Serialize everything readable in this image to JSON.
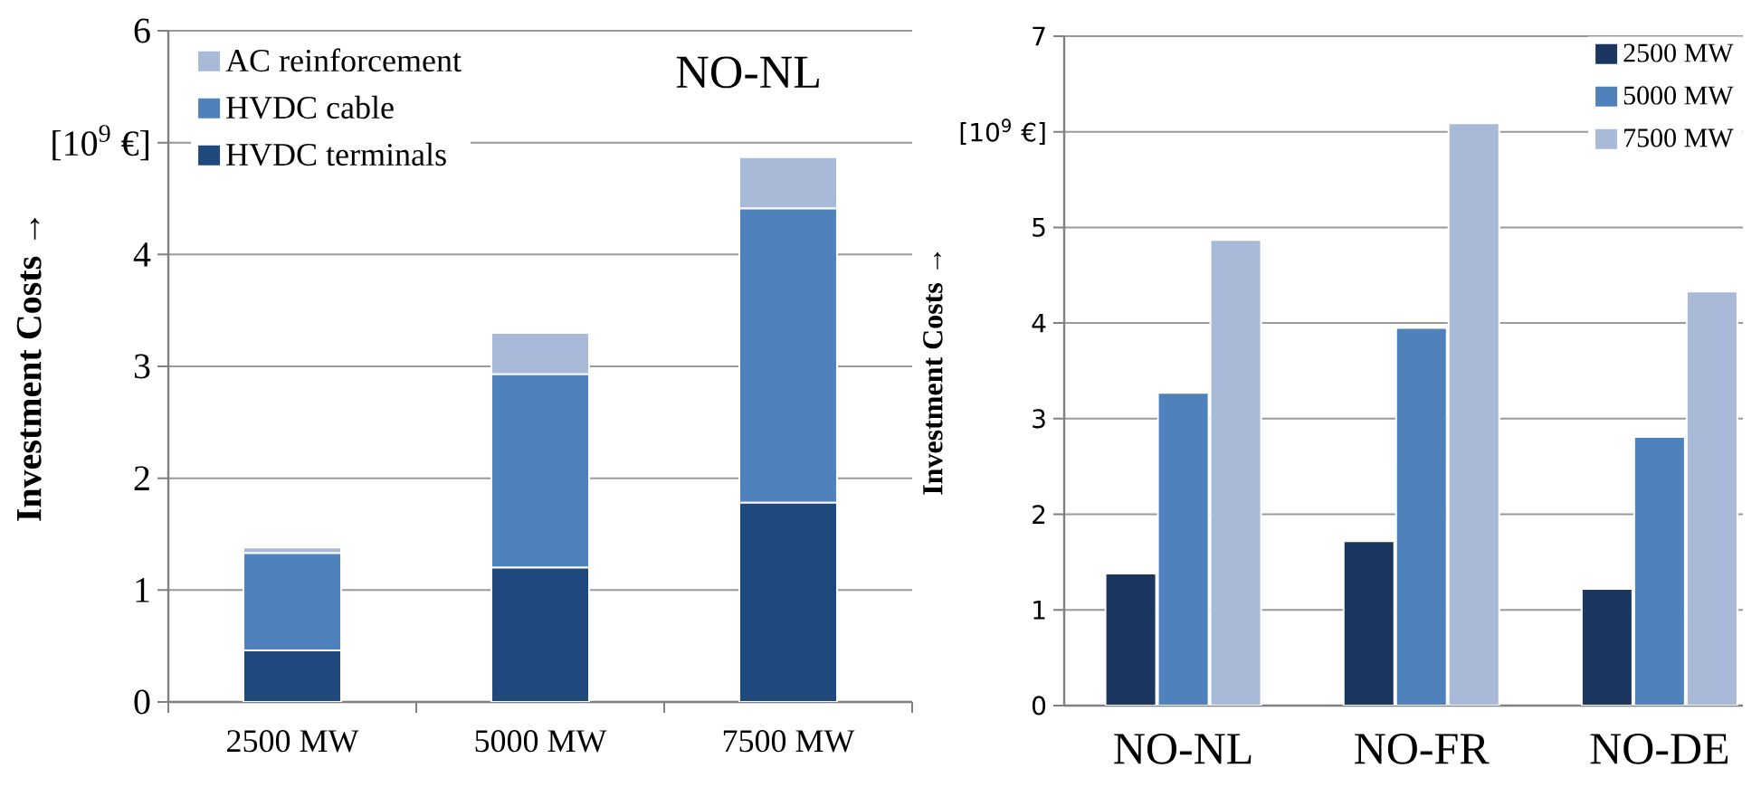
{
  "chart_data": [
    {
      "type": "bar",
      "stacked": true,
      "title": "NO-NL",
      "ylabel": "Investment Costs →",
      "categories": [
        "2500 MW",
        "5000 MW",
        "7500 MW"
      ],
      "series": [
        {
          "name": "HVDC terminals",
          "color": "#1f497d",
          "values": [
            0.46,
            1.2,
            1.78
          ]
        },
        {
          "name": "HVDC cable",
          "color": "#4f81bd",
          "values": [
            0.87,
            1.73,
            2.63
          ]
        },
        {
          "name": "AC reinforcement",
          "color": "#a9b9d8",
          "values": [
            0.05,
            0.37,
            0.46
          ]
        }
      ],
      "ylim": [
        0,
        6
      ],
      "yticks": [
        0,
        1,
        2,
        3,
        4,
        {
          "value": 5,
          "label": "[10$^{9}$ €]"
        },
        6
      ],
      "grid": "y",
      "legend": "top left"
    },
    {
      "type": "bar",
      "ylabel": "Investment Costs →",
      "categories": [
        "NO-NL",
        "NO-FR",
        "NO-DE"
      ],
      "series": [
        {
          "name": "2500 MW",
          "color": "#1c375f",
          "values": [
            1.38,
            1.72,
            1.22
          ]
        },
        {
          "name": "5000 MW",
          "color": "#4f81bd",
          "values": [
            3.27,
            3.95,
            2.81
          ]
        },
        {
          "name": "7500 MW",
          "color": "#a9b9d8",
          "values": [
            4.87,
            6.09,
            4.33
          ]
        }
      ],
      "ylim": [
        0,
        7
      ],
      "yticks": [
        0,
        1,
        2,
        3,
        4,
        5,
        {
          "value": 6,
          "label": "[10$^{9}$ €]"
        },
        7
      ],
      "grid": "y",
      "legend": "top right"
    }
  ]
}
